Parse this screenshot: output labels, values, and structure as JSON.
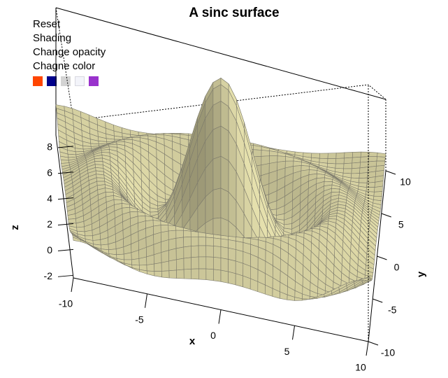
{
  "chart_data": {
    "type": "surface",
    "title": "A sinc surface",
    "function": "z = 10*sin(r)/r, r = sqrt(x^2+y^2)",
    "xlabel": "x",
    "ylabel": "y",
    "zlabel": "z",
    "xlim": [
      -10,
      10
    ],
    "ylim": [
      -10,
      10
    ],
    "zlim": [
      -2.2,
      10
    ],
    "x_ticks": [
      "-10",
      "-5",
      "0",
      "5",
      "10"
    ],
    "y_ticks": [
      "-10",
      "-5",
      "0",
      "5",
      "10"
    ],
    "z_ticks": [
      "-2",
      "0",
      "2",
      "4",
      "6",
      "8"
    ],
    "surface_color": "#d4cfa0",
    "grid_color": "#7d7b6c",
    "grid_resolution": 40
  },
  "menu": {
    "items": [
      "Reset",
      "Shading",
      "Change opacity",
      "Chagne color"
    ]
  },
  "swatches": [
    {
      "name": "orange",
      "color": "#ff4500"
    },
    {
      "name": "navy",
      "color": "#00008b"
    },
    {
      "name": "lightgray",
      "color": "#d3d3d3"
    },
    {
      "name": "ghostwhite",
      "color": "#f3f4fa"
    },
    {
      "name": "purple",
      "color": "#9932cc"
    }
  ]
}
